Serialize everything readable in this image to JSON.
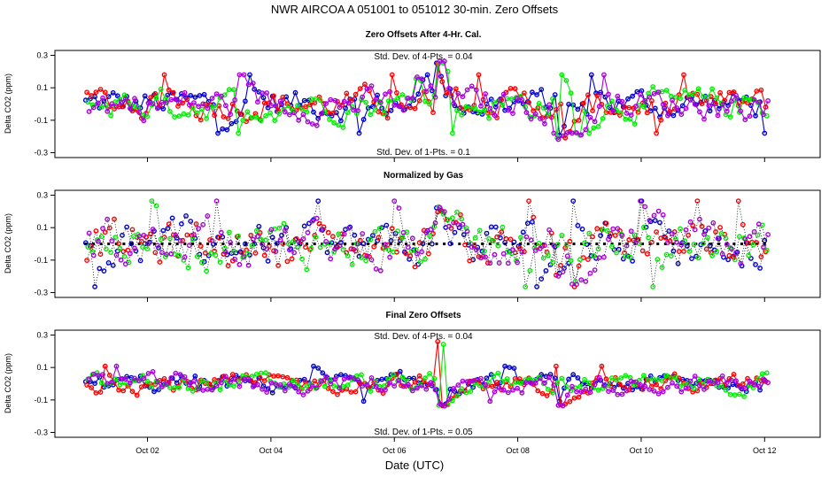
{
  "chart_data": {
    "type": "scatter",
    "title": "NWR   AIRCOA A   051001 to 051012   30-min. Zero Offsets",
    "xlabel": "Date (UTC)",
    "x_ticks": [
      "Oct 02",
      "Oct 04",
      "Oct 06",
      "Oct 08",
      "Oct 10",
      "Oct 12"
    ],
    "x_tick_days": [
      2,
      4,
      6,
      8,
      10,
      12
    ],
    "xlim": [
      0.5,
      12.9
    ],
    "series_colors": [
      "#0000cc",
      "#ff0000",
      "#00ee00",
      "#aa00dd",
      "#000000"
    ],
    "panels": [
      {
        "title": "Zero Offsets After 4-Hr. Cal.",
        "ylabel": "Delta CO2 (ppm)",
        "ylim": [
          -0.33,
          0.33
        ],
        "y_ticks": [
          -0.3,
          -0.1,
          0.1,
          0.3
        ],
        "y_tick_labels": [
          "-0.3",
          "-0.1",
          "0.1",
          "0.3"
        ],
        "annotations": [
          "Std. Dev. of 4-Pts. = 0.04",
          "Std. Dev. of 1-Pts. = 0.1"
        ],
        "amp": 0.075,
        "shared_excursions": [
          {
            "day": 6.75,
            "value": 0.29
          },
          {
            "day": 6.4,
            "value": 0.17
          },
          {
            "day": 8.7,
            "value": -0.22
          },
          {
            "day": 8.95,
            "value": -0.2
          }
        ],
        "mean_line": false
      },
      {
        "title": "Normalized by Gas",
        "ylabel": "Delta CO2 (ppm)",
        "ylim": [
          -0.33,
          0.33
        ],
        "y_ticks": [
          -0.3,
          -0.1,
          0.1,
          0.3
        ],
        "y_tick_labels": [
          "-0.3",
          "-0.1",
          "0.1",
          "0.3"
        ],
        "annotations": [],
        "amp": 0.11,
        "shared_excursions": [
          {
            "day": 6.75,
            "value": 0.23
          },
          {
            "day": 8.7,
            "value": -0.2
          },
          {
            "day": 8.95,
            "value": -0.25
          }
        ],
        "mean_line": true
      },
      {
        "title": "Final Zero Offsets",
        "ylabel": "Delta CO2 (ppm)",
        "ylim": [
          -0.33,
          0.33
        ],
        "y_ticks": [
          -0.3,
          -0.1,
          0.1,
          0.3
        ],
        "y_tick_labels": [
          "-0.3",
          "-0.1",
          "0.1",
          "0.3"
        ],
        "annotations": [
          "Std. Dev. of 4-Pts. = 0.04",
          "Std. Dev. of 1-Pts. = 0.05"
        ],
        "amp": 0.045,
        "shared_excursions": [
          {
            "day": 6.75,
            "value": 0.27
          },
          {
            "day": 6.8,
            "value": -0.14
          },
          {
            "day": 8.7,
            "value": -0.14
          }
        ],
        "mean_line": false
      }
    ]
  }
}
